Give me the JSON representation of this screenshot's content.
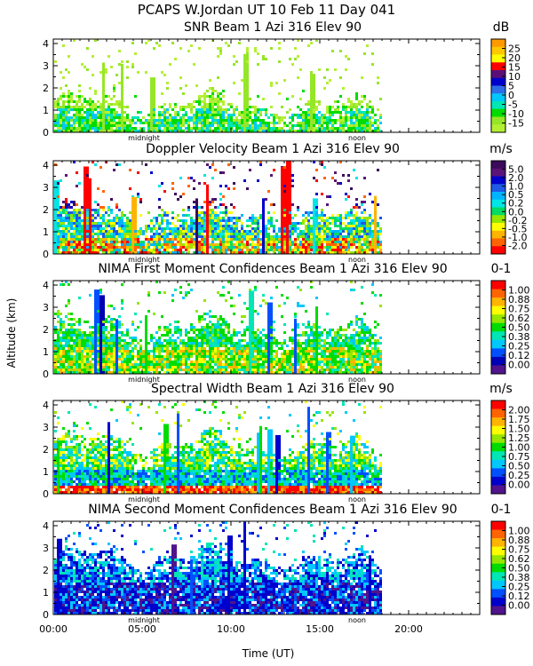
{
  "figure": {
    "title": "PCAPS W.Jordan UT  10 Feb 11 Day 041",
    "ylabel": "Altitude (km)",
    "xlabel": "Time (UT)",
    "x_ticks": [
      "00:00",
      "05:00",
      "10:00",
      "15:00",
      "20:00"
    ],
    "y_ticks": [
      "0",
      "1",
      "2",
      "3",
      "4"
    ],
    "midnight_label": "midnight",
    "noon_label": "noon"
  },
  "chart_data": [
    {
      "type": "heatmap",
      "title": "SNR Beam 1 Azi 316 Elev 90",
      "unit": "dB",
      "xlabel": "Time (UT)",
      "ylabel": "Altitude (km)",
      "xlim_hours": [
        0,
        24
      ],
      "data_end_hours": 18.5,
      "ylim_km": [
        0,
        4.2
      ],
      "colorbar_labels": [
        "25",
        "20",
        "15",
        "10",
        "5",
        "0",
        "-5",
        "-10",
        "-15"
      ],
      "colorbar_colors": [
        "#ff9900",
        "#ffc800",
        "#ffff00",
        "#ff0000",
        "#5a0f78",
        "#0000cd",
        "#2d6ee6",
        "#00c8ff",
        "#00e6b4",
        "#00dc00",
        "#96e628",
        "#b4f032"
      ],
      "regime": "snr"
    },
    {
      "type": "heatmap",
      "title": "Doppler Velocity Beam 1 Azi 316 Elev 90",
      "unit": "m/s",
      "xlabel": "Time (UT)",
      "ylabel": "Altitude (km)",
      "xlim_hours": [
        0,
        24
      ],
      "data_end_hours": 18.5,
      "ylim_km": [
        0,
        4.2
      ],
      "colorbar_labels": [
        "5.0",
        "2.0",
        "1.0",
        "0.5",
        "0.2",
        "0.0",
        "-0.2",
        "-0.5",
        "-1.0",
        "-2.0"
      ],
      "colorbar_colors": [
        "#3c0a5a",
        "#5a1478",
        "#0000cd",
        "#1e5ae6",
        "#00b4ff",
        "#00e6e6",
        "#00dc64",
        "#96e600",
        "#ffff00",
        "#ffb400",
        "#ff6400",
        "#ff0000"
      ],
      "regime": "doppler"
    },
    {
      "type": "heatmap",
      "title": "NIMA First Moment Confidences Beam 1 Azi 316 Elev 90",
      "unit": "0-1",
      "xlabel": "Time (UT)",
      "ylabel": "Altitude (km)",
      "xlim_hours": [
        0,
        24
      ],
      "data_end_hours": 18.5,
      "ylim_km": [
        0,
        4.2
      ],
      "colorbar_labels": [
        "1.00",
        "0.88",
        "0.75",
        "0.62",
        "0.50",
        "0.38",
        "0.25",
        "0.12",
        "0.00"
      ],
      "colorbar_colors": [
        "#ff0000",
        "#ff6400",
        "#ffb400",
        "#ffff00",
        "#96e600",
        "#00dc00",
        "#00e6b4",
        "#00c8ff",
        "#0050ff",
        "#0000b4",
        "#50148c"
      ],
      "regime": "nima1"
    },
    {
      "type": "heatmap",
      "title": "Spectral Width Beam 1 Azi 316 Elev 90",
      "unit": "m/s",
      "xlabel": "Time (UT)",
      "ylabel": "Altitude (km)",
      "xlim_hours": [
        0,
        24
      ],
      "data_end_hours": 18.5,
      "ylim_km": [
        0,
        4.2
      ],
      "colorbar_labels": [
        "2.00",
        "1.75",
        "1.50",
        "1.25",
        "1.00",
        "0.75",
        "0.50",
        "0.25",
        "0.00"
      ],
      "colorbar_colors": [
        "#ff0000",
        "#ff6400",
        "#ffb400",
        "#ffff00",
        "#96e600",
        "#00dc00",
        "#00e6b4",
        "#00c8ff",
        "#0050ff",
        "#0000cd",
        "#50148c"
      ],
      "regime": "width"
    },
    {
      "type": "heatmap",
      "title": "NIMA Second Moment Confidences Beam 1 Azi 316 Elev 90",
      "unit": "0-1",
      "xlabel": "Time (UT)",
      "ylabel": "Altitude (km)",
      "xlim_hours": [
        0,
        24
      ],
      "data_end_hours": 18.5,
      "ylim_km": [
        0,
        4.2
      ],
      "colorbar_labels": [
        "1.00",
        "0.88",
        "0.75",
        "0.62",
        "0.50",
        "0.38",
        "0.25",
        "0.12",
        "0.00"
      ],
      "colorbar_colors": [
        "#ff0000",
        "#ff6400",
        "#ffb400",
        "#ffff00",
        "#96e600",
        "#00dc00",
        "#00e6b4",
        "#00c8ff",
        "#0050ff",
        "#0000cd",
        "#50148c"
      ],
      "regime": "nima2"
    }
  ]
}
